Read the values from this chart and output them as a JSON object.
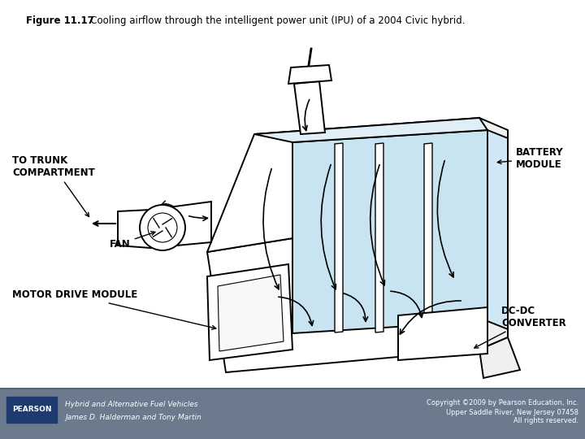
{
  "title_bold": "Figure 11.17",
  "title_rest": "   Cooling airflow through the intelligent power unit (IPU) of a 2004 Civic hybrid.",
  "background_color": "#ffffff",
  "footer_bg_color": "#6b7b8d",
  "pearson_box_color": "#1e3a6e",
  "pearson_text": "PEARSON",
  "footer_left_line1": "Hybrid and Alternative Fuel Vehicles",
  "footer_left_line2": "James D. Halderman and Tony Martin",
  "footer_right_line1": "Copyright ©2009 by Pearson Education, Inc.",
  "footer_right_line2": "Upper Saddle River, New Jersey 07458",
  "footer_right_line3": "All rights reserved.",
  "label_trunk": "TO TRUNK\nCOMPARTMENT",
  "label_fan": "FAN",
  "label_motor": "MOTOR DRIVE MODULE",
  "label_battery": "BATTERY\nMODULE",
  "label_dcdc": "DC-DC\nCONVERTER",
  "light_blue": "#c8e4f0",
  "line_color": "#000000",
  "separator_color": "#4a6080"
}
